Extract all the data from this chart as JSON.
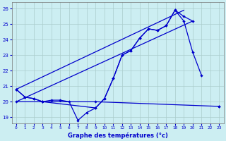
{
  "title": "Graphe des températures (°c)",
  "bg_color": "#cceef2",
  "grid_color": "#aacccc",
  "line_color": "#0000cc",
  "xlim": [
    -0.5,
    23.5
  ],
  "ylim": [
    18.6,
    26.4
  ],
  "yticks": [
    19,
    20,
    21,
    22,
    23,
    24,
    25,
    26
  ],
  "xticks": [
    0,
    1,
    2,
    3,
    4,
    5,
    6,
    7,
    8,
    9,
    10,
    11,
    12,
    13,
    14,
    15,
    16,
    17,
    18,
    19,
    20,
    21,
    22,
    23
  ],
  "line_main": {
    "x": [
      0,
      1,
      2,
      3,
      4,
      5,
      6,
      7,
      8,
      9,
      10,
      11,
      12,
      13,
      14,
      15,
      16,
      17,
      18,
      19,
      20,
      21,
      22,
      23
    ],
    "y": [
      20.8,
      20.3,
      20.2,
      20.0,
      20.1,
      20.1,
      20.0,
      18.8,
      19.3,
      19.6,
      20.2,
      21.5,
      23.0,
      23.3,
      24.1,
      24.7,
      24.6,
      24.9,
      25.9,
      25.2,
      23.2,
      21.7,
      null,
      null
    ]
  },
  "line_smooth": {
    "x": [
      0,
      1,
      2,
      3,
      9,
      10,
      11,
      12,
      13,
      14,
      15,
      16,
      17,
      18,
      19,
      20,
      21,
      22,
      23
    ],
    "y": [
      20.8,
      20.3,
      20.2,
      20.0,
      19.6,
      20.2,
      21.5,
      23.0,
      23.3,
      24.1,
      24.7,
      24.6,
      24.9,
      25.9,
      25.5,
      25.2,
      null,
      null,
      19.7
    ]
  },
  "line_flat": {
    "x": [
      0,
      3,
      9,
      23
    ],
    "y": [
      20.0,
      20.0,
      20.0,
      19.7
    ]
  },
  "line_trend1": {
    "x": [
      0,
      19
    ],
    "y": [
      20.8,
      25.9
    ]
  },
  "line_trend2": {
    "x": [
      0,
      20
    ],
    "y": [
      20.0,
      25.2
    ]
  }
}
